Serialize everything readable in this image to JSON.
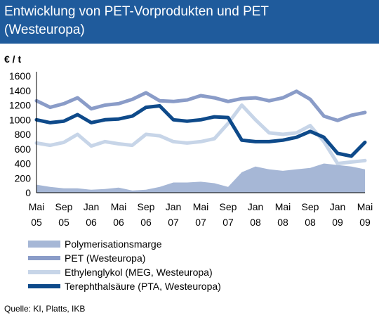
{
  "title": "Entwicklung von PET-Vorprodukten und PET\n(Westeuropa)",
  "source": "Quelle: KI, Platts, IKB",
  "colors": {
    "title_bg": "#1f5b9c",
    "margin": "#a6b7d6",
    "pet": "#8a9cc8",
    "meg": "#c7d5e8",
    "pta": "#0e4a8a"
  },
  "chart_data": {
    "type": "line",
    "ylabel": "€ / t",
    "ylim": [
      0,
      1600
    ],
    "yticks": [
      0,
      200,
      400,
      600,
      800,
      1000,
      1200,
      1400,
      1600
    ],
    "x_range": [
      "2005-05",
      "2009-05"
    ],
    "xticks": [
      {
        "month": "Mai",
        "year": "05"
      },
      {
        "month": "Sep",
        "year": "05"
      },
      {
        "month": "Jan",
        "year": "06"
      },
      {
        "month": "Mai",
        "year": "06"
      },
      {
        "month": "Sep",
        "year": "06"
      },
      {
        "month": "Jan",
        "year": "07"
      },
      {
        "month": "Mai",
        "year": "07"
      },
      {
        "month": "Sep",
        "year": "07"
      },
      {
        "month": "Jan",
        "year": "08"
      },
      {
        "month": "Mai",
        "year": "08"
      },
      {
        "month": "Sep",
        "year": "08"
      },
      {
        "month": "Jan",
        "year": "09"
      },
      {
        "month": "Mai",
        "year": "09"
      }
    ],
    "grid": false,
    "legend_position": "bottom",
    "x": [
      "2005-05",
      "2005-07",
      "2005-09",
      "2005-11",
      "2006-01",
      "2006-03",
      "2006-05",
      "2006-07",
      "2006-09",
      "2006-11",
      "2007-01",
      "2007-03",
      "2007-05",
      "2007-07",
      "2007-09",
      "2007-11",
      "2008-01",
      "2008-03",
      "2008-05",
      "2008-07",
      "2008-09",
      "2008-11",
      "2009-01",
      "2009-03",
      "2009-05"
    ],
    "series": [
      {
        "name": "Polymerisationsmarge",
        "style": "area",
        "values": [
          110,
          80,
          60,
          60,
          40,
          50,
          70,
          30,
          40,
          80,
          140,
          140,
          150,
          130,
          80,
          280,
          360,
          320,
          300,
          320,
          340,
          400,
          380,
          360,
          320
        ]
      },
      {
        "name": "PET (Westeuropa)",
        "style": "line",
        "values": [
          1260,
          1170,
          1220,
          1300,
          1150,
          1200,
          1220,
          1280,
          1370,
          1260,
          1250,
          1270,
          1330,
          1300,
          1250,
          1290,
          1300,
          1260,
          1300,
          1390,
          1280,
          1050,
          990,
          1060,
          1100
        ]
      },
      {
        "name": "Ethylenglykol (MEG, Westeuropa)",
        "style": "line",
        "values": [
          680,
          650,
          690,
          800,
          640,
          700,
          670,
          650,
          800,
          780,
          700,
          680,
          700,
          740,
          950,
          1200,
          1000,
          820,
          800,
          820,
          920,
          700,
          400,
          420,
          440
        ]
      },
      {
        "name": "Terephthalsäure (PTA, Westeuropa)",
        "style": "line",
        "values": [
          1000,
          960,
          980,
          1070,
          960,
          1000,
          1010,
          1050,
          1170,
          1190,
          1000,
          980,
          1000,
          1040,
          1030,
          720,
          700,
          700,
          720,
          760,
          840,
          760,
          540,
          500,
          690
        ]
      }
    ]
  }
}
